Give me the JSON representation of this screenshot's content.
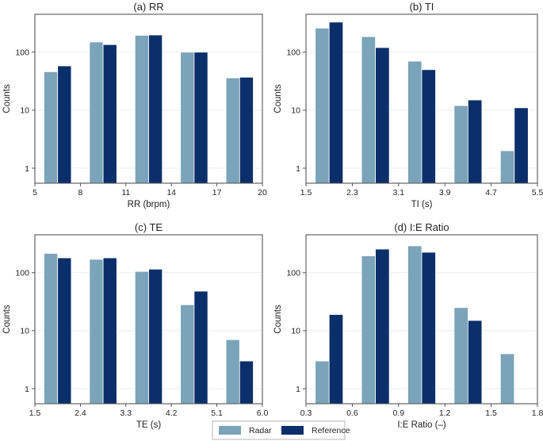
{
  "legend": {
    "items": [
      {
        "label": "Radar",
        "color": "#7ba3b9"
      },
      {
        "label": "Reference",
        "color": "#0b2f6b"
      }
    ]
  },
  "chart_data": [
    {
      "type": "bar",
      "title": "(a) RR",
      "xlabel": "RR (brpm)",
      "ylabel": "Counts",
      "yscale": "log",
      "ylim": [
        0.55,
        450
      ],
      "xlim": [
        5,
        20
      ],
      "xticks": [
        5,
        8,
        11,
        14,
        17,
        20
      ],
      "yticks": [
        1,
        10,
        100
      ],
      "ytick_labels": [
        "1",
        "10",
        "100"
      ],
      "bin_edges": [
        5,
        8,
        11,
        14,
        17,
        20
      ],
      "series": [
        {
          "name": "Radar",
          "values": [
            46,
            150,
            195,
            100,
            36
          ]
        },
        {
          "name": "Reference",
          "values": [
            58,
            135,
            198,
            100,
            37
          ]
        }
      ]
    },
    {
      "type": "bar",
      "title": "(b) TI",
      "xlabel": "TI (s)",
      "ylabel": "Counts",
      "yscale": "log",
      "ylim": [
        0.55,
        450
      ],
      "xlim": [
        1.5,
        5.5
      ],
      "xticks": [
        1.5,
        2.3,
        3.1,
        3.9,
        4.7,
        5.5
      ],
      "yticks": [
        1,
        10,
        100
      ],
      "ytick_labels": [
        "1",
        "10",
        "100"
      ],
      "bin_edges": [
        1.5,
        2.3,
        3.1,
        3.9,
        4.7,
        5.5
      ],
      "series": [
        {
          "name": "Radar",
          "values": [
            260,
            185,
            70,
            12,
            2
          ]
        },
        {
          "name": "Reference",
          "values": [
            330,
            120,
            50,
            15,
            11
          ]
        }
      ]
    },
    {
      "type": "bar",
      "title": "(c) TE",
      "xlabel": "TE (s)",
      "ylabel": "Counts",
      "yscale": "log",
      "ylim": [
        0.55,
        450
      ],
      "xlim": [
        1.5,
        6.0
      ],
      "xticks": [
        1.5,
        2.4,
        3.3,
        4.2,
        5.1,
        6.0
      ],
      "yticks": [
        1,
        10,
        100
      ],
      "ytick_labels": [
        "1",
        "10",
        "100"
      ],
      "bin_edges": [
        1.5,
        2.4,
        3.3,
        4.2,
        5.1,
        6.0
      ],
      "series": [
        {
          "name": "Radar",
          "values": [
            215,
            170,
            105,
            28,
            7
          ]
        },
        {
          "name": "Reference",
          "values": [
            180,
            180,
            115,
            48,
            3
          ]
        }
      ]
    },
    {
      "type": "bar",
      "title": "(d) I:E Ratio",
      "xlabel": "I:E Ratio (–)",
      "ylabel": "Counts",
      "yscale": "log",
      "ylim": [
        0.55,
        450
      ],
      "xlim": [
        0.3,
        1.8
      ],
      "xticks": [
        0.3,
        0.6,
        0.9,
        1.2,
        1.5,
        1.8
      ],
      "yticks": [
        1,
        10,
        100
      ],
      "ytick_labels": [
        "1",
        "10",
        "100"
      ],
      "bin_edges": [
        0.3,
        0.6,
        0.9,
        1.2,
        1.5,
        1.8
      ],
      "series": [
        {
          "name": "Radar",
          "values": [
            3,
            195,
            290,
            25,
            4
          ]
        },
        {
          "name": "Reference",
          "values": [
            19,
            255,
            225,
            15,
            0
          ]
        }
      ]
    }
  ]
}
